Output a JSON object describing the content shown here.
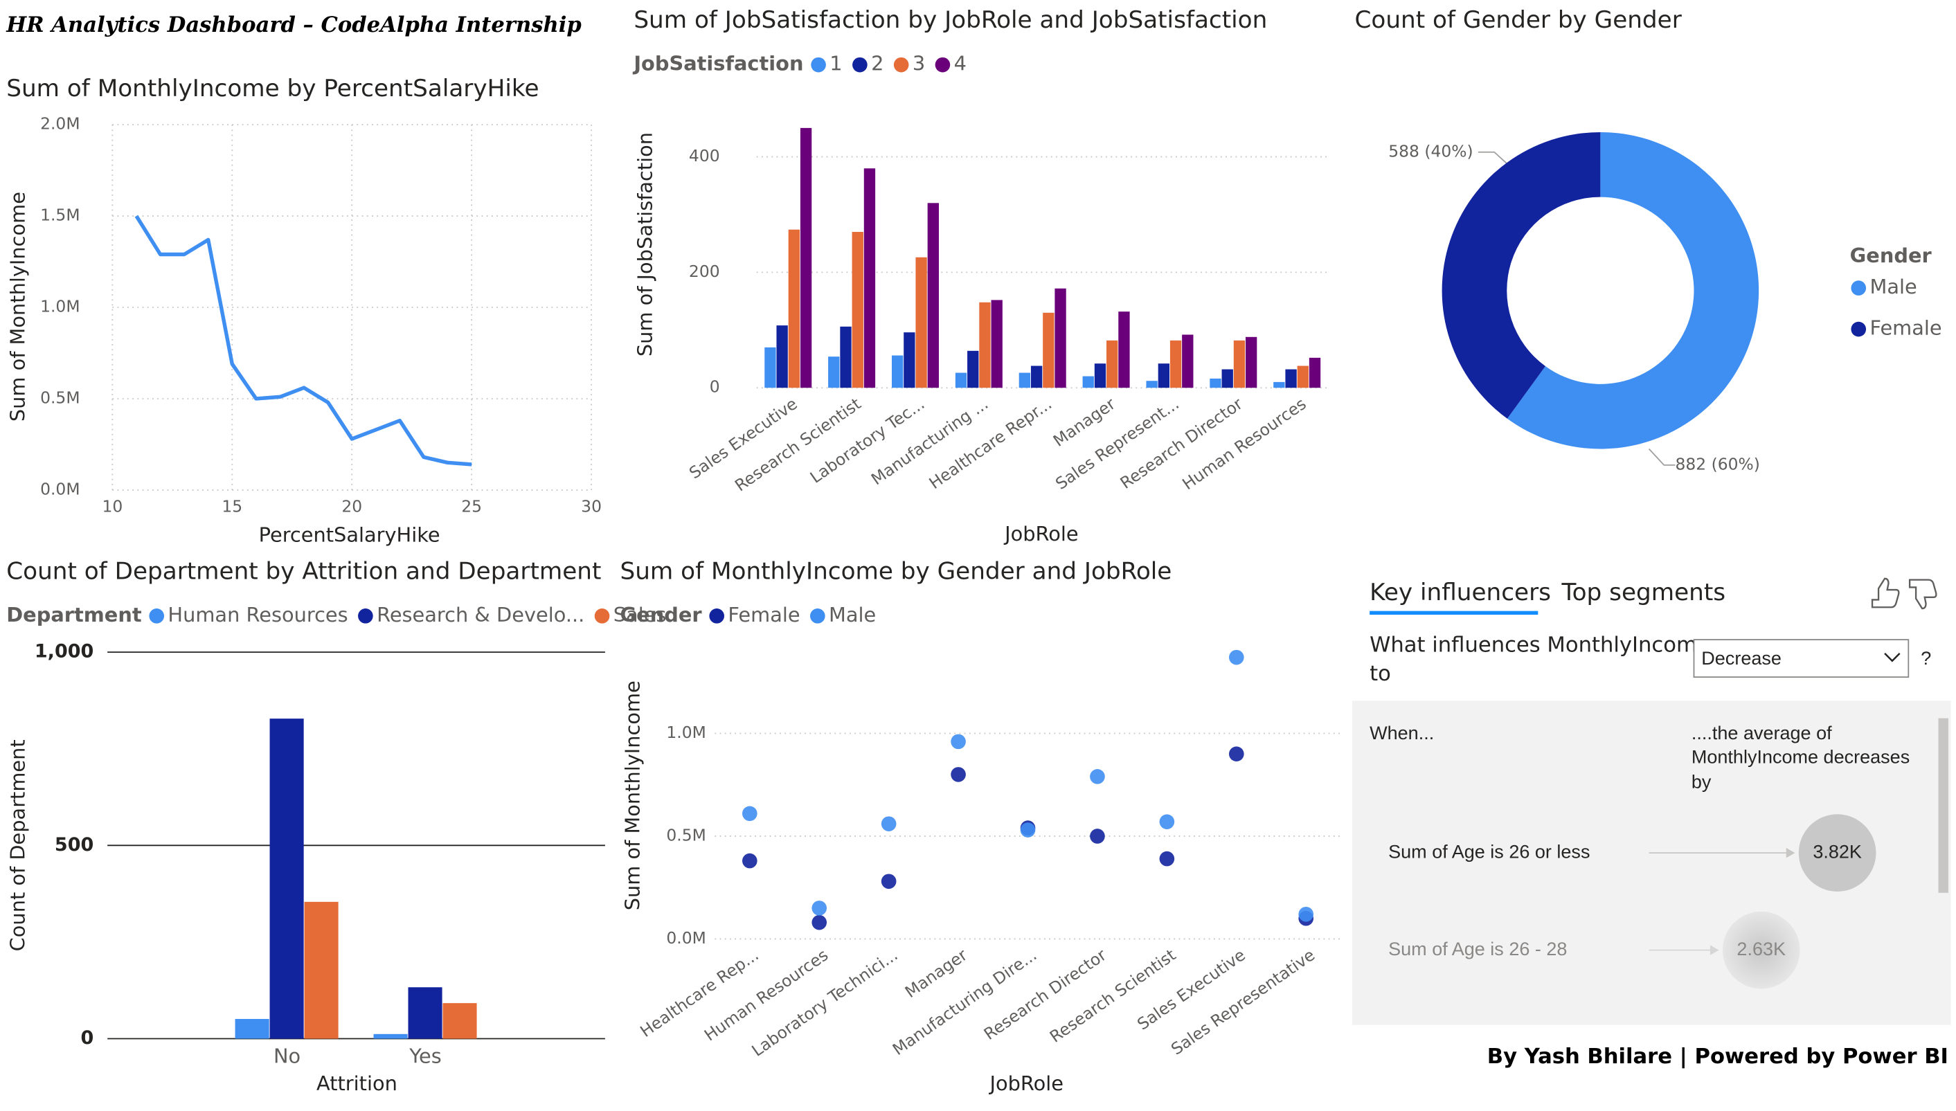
{
  "header": {
    "title": "HR Analytics Dashboard – CodeAlpha Internship"
  },
  "chart_data": [
    {
      "type": "line",
      "title": "Sum of MonthlyIncome by PercentSalaryHike",
      "xlabel": "PercentSalaryHike",
      "ylabel": "Sum of MonthlyIncome",
      "x": [
        11,
        12,
        13,
        14,
        15,
        16,
        17,
        18,
        19,
        20,
        21,
        22,
        23,
        24,
        25
      ],
      "values": [
        1500000,
        1290000,
        1290000,
        1370000,
        690000,
        500000,
        510000,
        560000,
        480000,
        280000,
        330000,
        380000,
        180000,
        150000,
        140000
      ],
      "color": "#3f8ef2",
      "xlim": [
        10,
        30
      ],
      "xticks": [
        10,
        15,
        20,
        25,
        30
      ],
      "ylim": [
        0,
        2000000
      ],
      "yticks": [
        {
          "value": 0,
          "label": "0.0M"
        },
        {
          "value": 500000,
          "label": "0.5M"
        },
        {
          "value": 1000000,
          "label": "1.0M"
        },
        {
          "value": 1500000,
          "label": "1.5M"
        },
        {
          "value": 2000000,
          "label": "2.0M"
        }
      ],
      "grid": true
    },
    {
      "type": "bar",
      "title": "Sum of JobSatisfaction by JobRole and JobSatisfaction",
      "xlabel": "JobRole",
      "ylabel": "Sum of JobSatisfaction",
      "legend_title": "JobSatisfaction",
      "categories": [
        "Sales Executive",
        "Research Scientist",
        "Laboratory Tec...",
        "Manufacturing ...",
        "Healthcare Repr...",
        "Manager",
        "Sales Represent...",
        "Research Director",
        "Human Resources"
      ],
      "series": [
        {
          "name": "1",
          "color": "#3f8ef2",
          "values": [
            70,
            54,
            56,
            26,
            26,
            20,
            12,
            16,
            10
          ]
        },
        {
          "name": "2",
          "color": "#12239e",
          "values": [
            108,
            106,
            96,
            64,
            38,
            42,
            42,
            32,
            32
          ]
        },
        {
          "name": "3",
          "color": "#e66c37",
          "values": [
            274,
            270,
            226,
            148,
            130,
            82,
            82,
            82,
            38
          ]
        },
        {
          "name": "4",
          "color": "#6b007b",
          "values": [
            450,
            380,
            320,
            152,
            172,
            132,
            92,
            88,
            52
          ]
        }
      ],
      "ylim": [
        0,
        460
      ],
      "yticks": [
        0,
        200,
        400
      ],
      "grid": true
    },
    {
      "type": "pie",
      "title": "Count of Gender by Gender",
      "legend_title": "Gender",
      "categories": [
        "Male",
        "Female"
      ],
      "values": [
        882,
        588
      ],
      "value_labels": [
        "882 (60%)",
        "588 (40%)"
      ],
      "colors": [
        "#3f8ef2",
        "#12239e"
      ]
    },
    {
      "type": "bar",
      "title": "Count of Department by Attrition and Department",
      "xlabel": "Attrition",
      "ylabel": "Count of Department",
      "legend_title": "Department",
      "categories": [
        "No",
        "Yes"
      ],
      "series": [
        {
          "name": "Human Resources",
          "color": "#3f8ef2",
          "values": [
            51,
            12
          ]
        },
        {
          "name": "Research & Develo...",
          "color": "#12239e",
          "values": [
            828,
            133
          ]
        },
        {
          "name": "Sales",
          "color": "#e66c37",
          "values": [
            354,
            92
          ]
        }
      ],
      "ylim": [
        0,
        1000
      ],
      "yticks": [
        0,
        500,
        {
          "value": 1000,
          "label": "1,000"
        }
      ],
      "grid": true
    },
    {
      "type": "scatter",
      "title": "Sum of MonthlyIncome by Gender and JobRole",
      "xlabel": "JobRole",
      "ylabel": "Sum of MonthlyIncome",
      "legend_title": "Gender",
      "categories": [
        "Healthcare Rep...",
        "Human Resources",
        "Laboratory Technici...",
        "Manager",
        "Manufacturing Dire...",
        "Research Director",
        "Research Scientist",
        "Sales Executive",
        "Sales Representative"
      ],
      "series": [
        {
          "name": "Female",
          "color": "#12239e",
          "values": [
            380000,
            80000,
            280000,
            800000,
            540000,
            500000,
            390000,
            900000,
            100000
          ]
        },
        {
          "name": "Male",
          "color": "#3f8ef2",
          "values": [
            610000,
            150000,
            560000,
            960000,
            530000,
            790000,
            570000,
            1370000,
            120000
          ]
        }
      ],
      "ylim": [
        0,
        1450000
      ],
      "yticks": [
        {
          "value": 0,
          "label": "0.0M"
        },
        {
          "value": 500000,
          "label": "0.5M"
        },
        {
          "value": 1000000,
          "label": "1.0M"
        }
      ],
      "grid": true
    }
  ],
  "key_influencers": {
    "tabs": [
      "Key influencers",
      "Top segments"
    ],
    "question": [
      "What influences MonthlyIncome",
      "to"
    ],
    "dropdown": "Decrease",
    "help": "?",
    "col_when": "When...",
    "col_effect": [
      "....the average of",
      "MonthlyIncome decreases",
      "by"
    ],
    "rows": [
      {
        "label": "Sum of Age is 26 or less",
        "value": "3.82K"
      },
      {
        "label": "Sum of Age is 26 - 28",
        "value": "2.63K"
      }
    ]
  },
  "footer": "By Yash Bhilare | Powered by Power BI"
}
